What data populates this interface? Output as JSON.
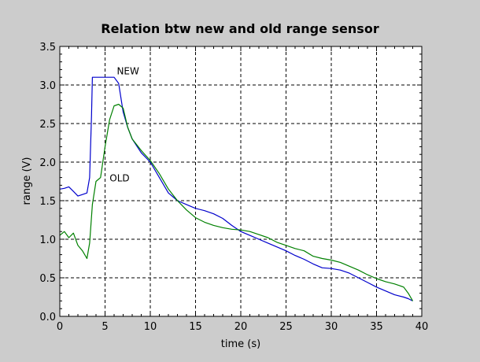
{
  "chart_data": {
    "type": "line",
    "title": "Relation btw new and old range sensor",
    "xlabel": "time (s)",
    "ylabel": "range (V)",
    "xlim": [
      0,
      40
    ],
    "ylim": [
      0,
      3.5
    ],
    "xticks": [
      "0",
      "5",
      "10",
      "15",
      "20",
      "25",
      "30",
      "35",
      "40"
    ],
    "yticks": [
      "0.0",
      "0.5",
      "1.0",
      "1.5",
      "2.0",
      "2.5",
      "3.0",
      "3.5"
    ],
    "grid": true,
    "colors": {
      "NEW": "#0000cc",
      "OLD": "#008000"
    },
    "series": [
      {
        "name": "NEW",
        "x": [
          0,
          0.5,
          1,
          1.5,
          2,
          2.5,
          3,
          3.3,
          3.5,
          3.6,
          4,
          5,
          6,
          6.5,
          7,
          7.5,
          8,
          9,
          10,
          11,
          12,
          13,
          14,
          15,
          16,
          17,
          18,
          19,
          20,
          21,
          22,
          23,
          24,
          25,
          26,
          27,
          28,
          29,
          30,
          31,
          32,
          33,
          34,
          35,
          36,
          37,
          38,
          38.5,
          39
        ],
        "values": [
          1.65,
          1.66,
          1.68,
          1.62,
          1.56,
          1.58,
          1.6,
          1.8,
          2.6,
          3.1,
          3.1,
          3.1,
          3.1,
          3.02,
          2.65,
          2.45,
          2.3,
          2.12,
          2.0,
          1.8,
          1.6,
          1.5,
          1.45,
          1.4,
          1.37,
          1.33,
          1.27,
          1.18,
          1.1,
          1.05,
          1.0,
          0.95,
          0.9,
          0.85,
          0.79,
          0.74,
          0.68,
          0.63,
          0.62,
          0.6,
          0.56,
          0.5,
          0.44,
          0.38,
          0.33,
          0.28,
          0.25,
          0.23,
          0.2
        ]
      },
      {
        "name": "OLD",
        "x": [
          0,
          0.5,
          1,
          1.5,
          2,
          2.5,
          3,
          3.3,
          3.6,
          4,
          4.5,
          5,
          5.5,
          6,
          6.5,
          7,
          7.5,
          8,
          9,
          10,
          11,
          12,
          13,
          14,
          15,
          16,
          17,
          18,
          19,
          20,
          21,
          22,
          23,
          24,
          25,
          26,
          27,
          28,
          29,
          30,
          31,
          32,
          33,
          34,
          35,
          36,
          37,
          38,
          38.5,
          39
        ],
        "values": [
          1.05,
          1.1,
          1.02,
          1.08,
          0.92,
          0.85,
          0.75,
          0.95,
          1.45,
          1.75,
          1.8,
          2.2,
          2.55,
          2.73,
          2.75,
          2.7,
          2.45,
          2.3,
          2.15,
          2.02,
          1.85,
          1.65,
          1.5,
          1.38,
          1.28,
          1.22,
          1.18,
          1.15,
          1.13,
          1.12,
          1.1,
          1.06,
          1.02,
          0.96,
          0.92,
          0.88,
          0.85,
          0.78,
          0.75,
          0.73,
          0.7,
          0.65,
          0.6,
          0.54,
          0.49,
          0.45,
          0.42,
          0.38,
          0.3,
          0.2
        ]
      }
    ],
    "annotations": [
      {
        "text": "NEW",
        "x": 6.3,
        "y": 3.14
      },
      {
        "text": "OLD",
        "x": 5.5,
        "y": 1.75
      }
    ]
  }
}
